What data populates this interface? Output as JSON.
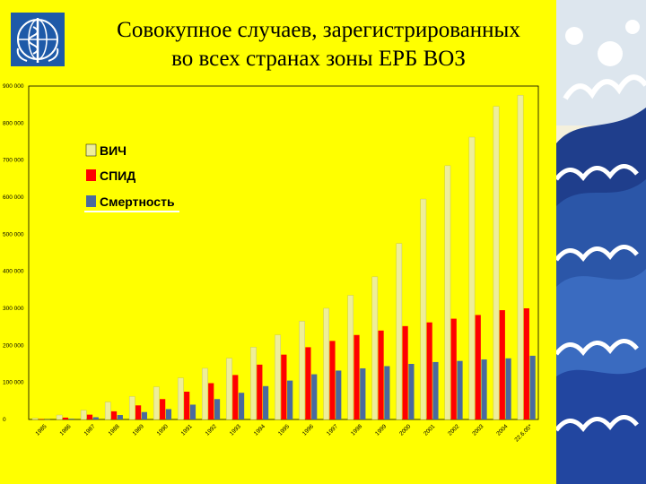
{
  "slide": {
    "title_line1": "Совокупное случаев, зарегистрированных",
    "title_line2": "во всех странах зоны ЕРБ ВОЗ"
  },
  "colors": {
    "background": "#FFFF00",
    "hiv": "#EEEE99",
    "aids": "#FF0000",
    "deaths": "#4A6A9E"
  },
  "chart_data": {
    "type": "bar",
    "categories": [
      "1985",
      "1986",
      "1987",
      "1988",
      "1989",
      "1990",
      "1991",
      "1992",
      "1993",
      "1994",
      "1995",
      "1996",
      "1997",
      "1998",
      "1999",
      "2000",
      "2001",
      "2002",
      "2003",
      "2004",
      "22.6.05*"
    ],
    "series": [
      {
        "name": "ВИЧ",
        "values": [
          3000,
          12000,
          25000,
          47000,
          62000,
          88000,
          112000,
          138000,
          165000,
          195000,
          228000,
          265000,
          300000,
          335000,
          385000,
          475000,
          595000,
          685000,
          762000,
          845000,
          875000
        ]
      },
      {
        "name": "СПИД",
        "values": [
          1000,
          5000,
          13000,
          22000,
          38000,
          55000,
          75000,
          98000,
          120000,
          148000,
          175000,
          195000,
          212000,
          228000,
          240000,
          252000,
          262000,
          272000,
          282000,
          295000,
          300000
        ]
      },
      {
        "name": "Смертность",
        "values": [
          500,
          2000,
          6000,
          12000,
          20000,
          28000,
          40000,
          55000,
          72000,
          90000,
          105000,
          122000,
          132000,
          138000,
          144000,
          150000,
          155000,
          158000,
          162000,
          165000,
          172000
        ]
      }
    ],
    "yticks": [
      "0",
      "100 000",
      "200 000",
      "300 000",
      "400 000",
      "500 000",
      "600 000",
      "700 000",
      "800 000",
      "900 000"
    ],
    "ylim": [
      0,
      900000
    ],
    "grid": false,
    "legend_position": "top-left"
  }
}
